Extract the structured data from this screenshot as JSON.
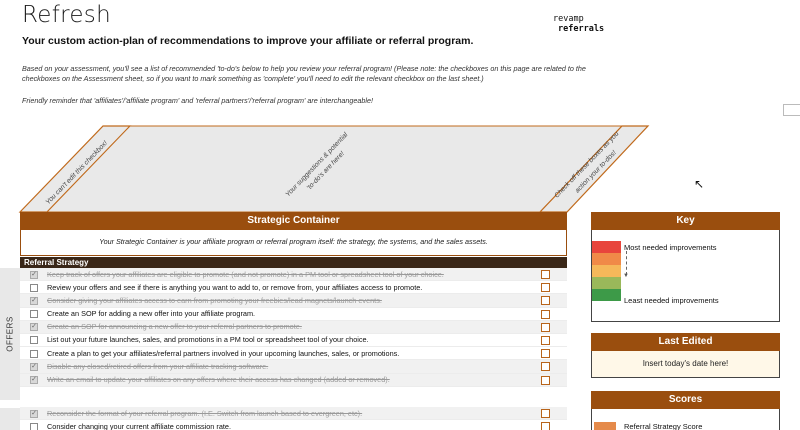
{
  "page": {
    "title": "Refresh",
    "subtitle": "Your custom action-plan of recommendations to improve your affiliate or referral program.",
    "intro": "Based on your assessment, you'll see a list of recommended 'to-do's below to help you review your referral program! (Please note: the checkboxes on this page are related to the checkboxes on the Assessment sheet, so if you want to mark something as 'complete' you'll need to edit the relevant checkbox on the last sheet.)",
    "reminder": "Friendly reminder that 'affiliates'/'affiliate program' and 'referral partners'/'referral program' are interchangeable!"
  },
  "logo": {
    "line1": "revamp",
    "line2": "referrals"
  },
  "diagonal_headers": {
    "left": "You can't edit this checkbox!",
    "middle_line1": "Your suggestions & potential",
    "middle_line2": "'to-do's are here!",
    "right_line1": "Check off these boxes as you",
    "right_line2": "action your to-dos!"
  },
  "strategic": {
    "header": "Strategic Container",
    "description": "Your Strategic Container is your affiliate program or referral program itself: the strategy, the systems, and the sales assets.",
    "section": "Referral Strategy",
    "side_label": "OFFERS",
    "rows": [
      {
        "text": "Keep track of offers your affiliates are eligible to promote (and not promote) in a PM tool or spreadsheet tool of your choice.",
        "done": true
      },
      {
        "text": "Review your offers and see if there is anything you want to add to, or remove from, your affiliates access to promote.",
        "done": false
      },
      {
        "text": "Consider giving your affiliates access to earn from promoting your freebies/lead magnets/launch events.",
        "done": true
      },
      {
        "text": "Create an SOP for adding a new offer into your affiliate program.",
        "done": false
      },
      {
        "text": "Create an SOP for announcing a new offer to your referral partners to promote.",
        "done": true
      },
      {
        "text": "List out your future launches, sales, and promotions in a PM tool or spreadsheet tool of your choice.",
        "done": false
      },
      {
        "text": "Create a plan to get your affiliates/referral partners involved in your upcoming launches, sales, or promotions.",
        "done": false
      },
      {
        "text": "Disable any closed/retired offers from your affiliate tracking software.",
        "done": true
      },
      {
        "text": "Write an email to update your affiliates on any offers where their access has changed (added or removed).",
        "done": true
      }
    ],
    "rows2": [
      {
        "text": "Reconsider the format of your referral program. (I.E. Switch from launch-based to evergreen, etc).",
        "done": true
      },
      {
        "text": "Consider changing your current affiliate commission rate.",
        "done": false
      }
    ]
  },
  "key": {
    "header": "Key",
    "most": "Most needed improvements",
    "least": "Least needed improvements",
    "colors": [
      "#e8453c",
      "#f08a48",
      "#f5b85a",
      "#9ab85a",
      "#3d9a48"
    ]
  },
  "last_edited": {
    "header": "Last Edited",
    "value": "Insert today's date here!"
  },
  "scores": {
    "header": "Scores",
    "item": "Referral Strategy Score",
    "color": "#e58a4a"
  }
}
